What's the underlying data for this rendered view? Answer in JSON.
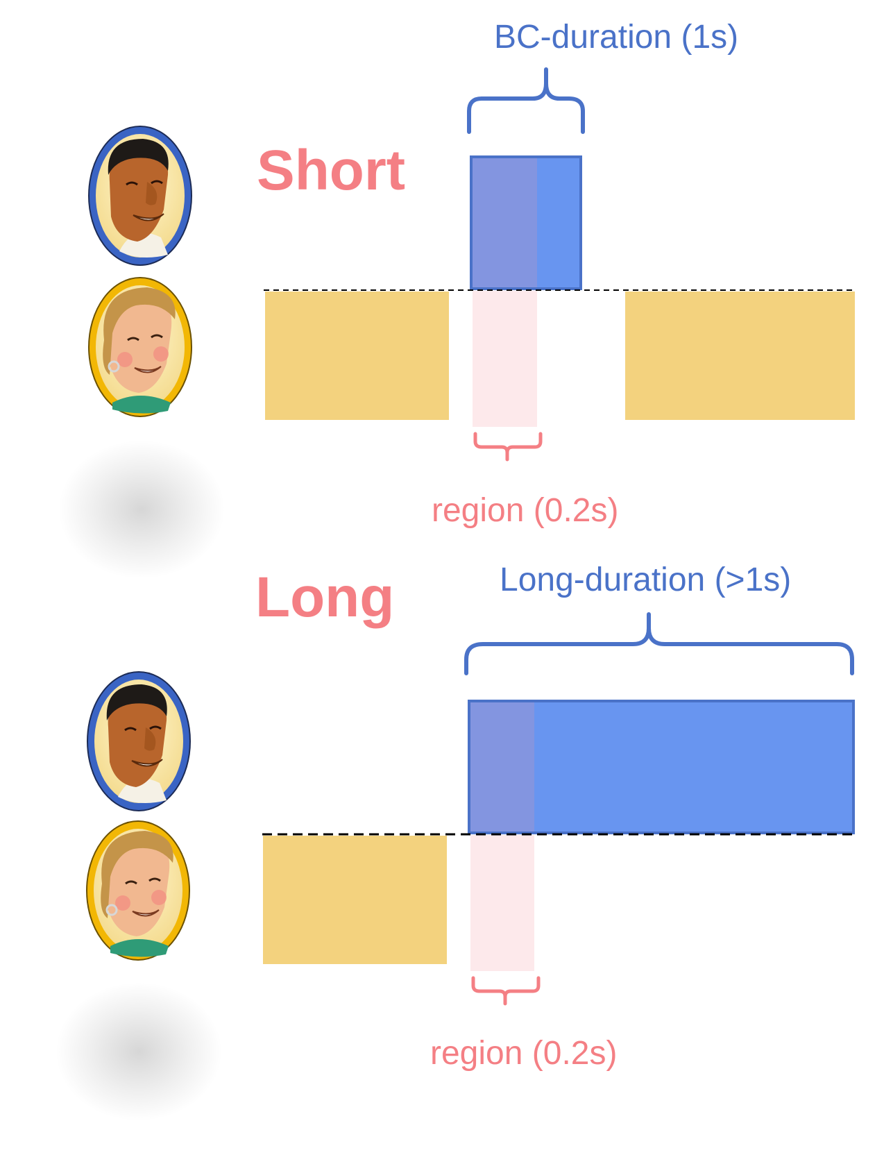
{
  "colors": {
    "accent_blue": "#4a72c8",
    "bar_blue": "#6895f0",
    "overlap_blue": "#8395e0",
    "bar_yellow": "#f3d27e",
    "accent_pink": "#f47f84",
    "region_pink": "#fde9eb",
    "frame_blue": "#3a64c4",
    "frame_gold": "#f2b705"
  },
  "speakers": [
    {
      "name": "speaker-male",
      "frame_color": "#3a64c4"
    },
    {
      "name": "speaker-female",
      "frame_color": "#f2b705"
    }
  ],
  "panels": {
    "short": {
      "title": "Short",
      "bc_label": "BC-duration (1s)",
      "region_label": "region (0.2s)"
    },
    "long": {
      "title": "Long",
      "bc_label": "Long-duration (>1s)",
      "region_label": "region (0.2s)"
    }
  }
}
